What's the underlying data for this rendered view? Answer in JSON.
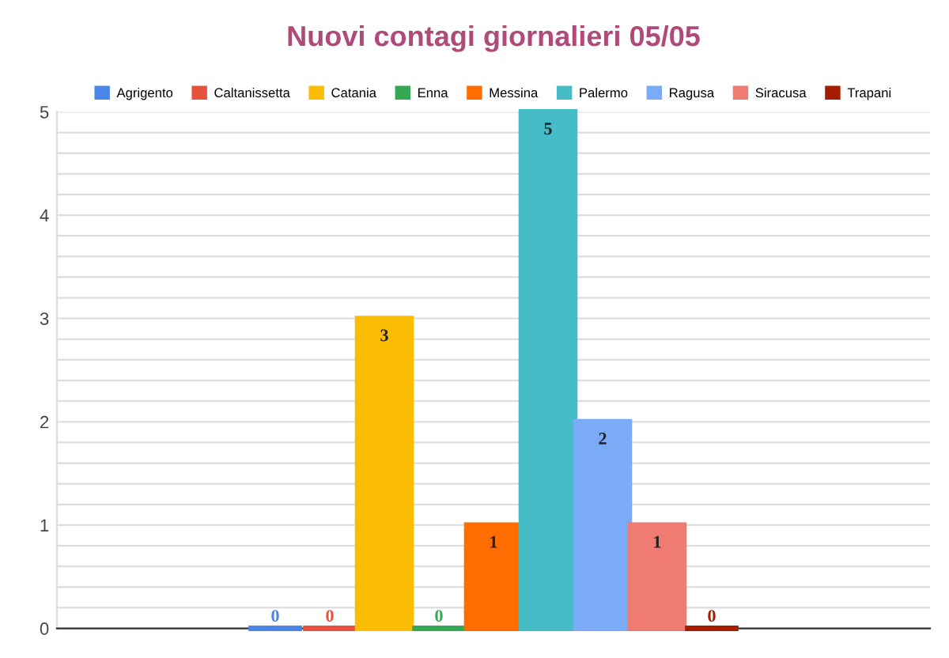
{
  "chart_data": {
    "type": "bar",
    "title": "Nuovi contagi giornalieri 05/05",
    "categories": [
      null
    ],
    "series": [
      {
        "name": "Agrigento",
        "color": "#4a86e8",
        "values": [
          0
        ]
      },
      {
        "name": "Caltanissetta",
        "color": "#e8513d",
        "values": [
          0
        ]
      },
      {
        "name": "Catania",
        "color": "#fbbc04",
        "values": [
          3
        ]
      },
      {
        "name": "Enna",
        "color": "#34a853",
        "values": [
          0
        ]
      },
      {
        "name": "Messina",
        "color": "#ff6d01",
        "values": [
          1
        ]
      },
      {
        "name": "Palermo",
        "color": "#46bdc6",
        "values": [
          5
        ]
      },
      {
        "name": "Ragusa",
        "color": "#7baaf7",
        "values": [
          2
        ]
      },
      {
        "name": "Siracusa",
        "color": "#f07b72",
        "values": [
          1
        ]
      },
      {
        "name": "Trapani",
        "color": "#a61c00",
        "values": [
          0
        ]
      }
    ],
    "ylim": [
      0,
      5
    ],
    "yticks": [
      0,
      {
        "value": 0.2,
        "label": null
      },
      {
        "value": 0.4,
        "label": null
      },
      {
        "value": 0.6,
        "label": null
      },
      {
        "value": 0.8,
        "label": null
      },
      1,
      {
        "value": 1.2,
        "label": null
      },
      {
        "value": 1.4,
        "label": null
      },
      {
        "value": 1.6,
        "label": null
      },
      {
        "value": 1.8,
        "label": null
      },
      2,
      {
        "value": 2.2,
        "label": null
      },
      {
        "value": 2.4,
        "label": null
      },
      {
        "value": 2.6,
        "label": null
      },
      {
        "value": 2.8,
        "label": null
      },
      3,
      {
        "value": 3.2,
        "label": null
      },
      {
        "value": 3.4,
        "label": null
      },
      {
        "value": 3.6,
        "label": null
      },
      {
        "value": 3.8,
        "label": null
      },
      4,
      {
        "value": 4.2,
        "label": null
      },
      {
        "value": 4.4,
        "label": null
      },
      {
        "value": 4.6,
        "label": null
      },
      {
        "value": 4.8,
        "label": null
      },
      5
    ],
    "grid": "y",
    "legend": "top",
    "data_labels": true
  }
}
